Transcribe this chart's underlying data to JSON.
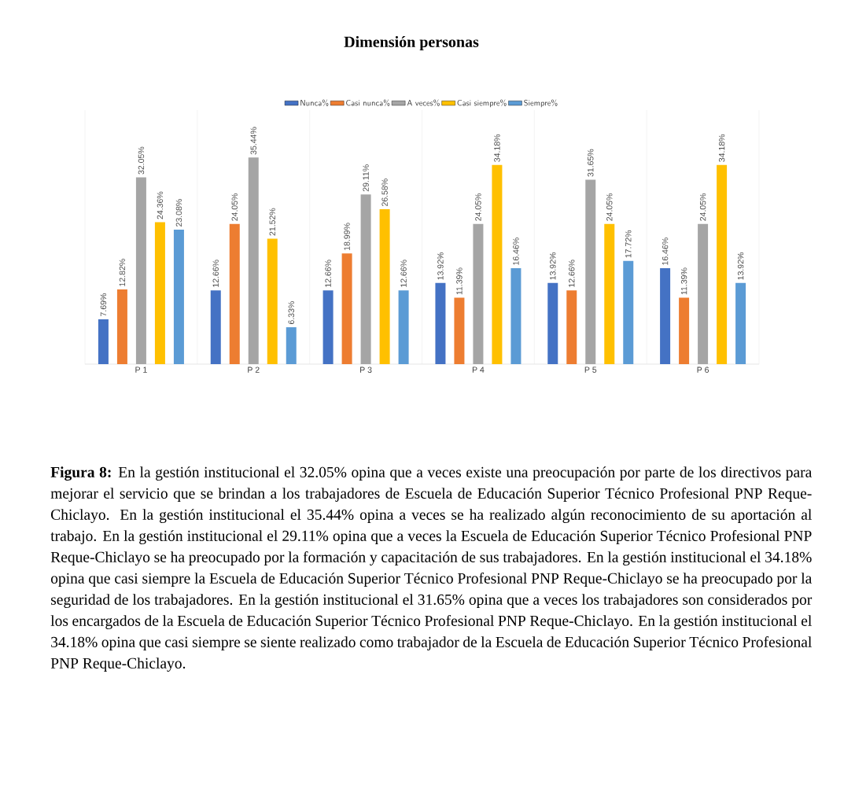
{
  "chart_data": {
    "type": "bar",
    "title": "Dimensión personas",
    "categories": [
      "P 1",
      "P 2",
      "P 3",
      "P 4",
      "P 5",
      "P 6"
    ],
    "series": [
      {
        "name": "Nunca%",
        "color": "#4472c4",
        "values": [
          7.69,
          12.66,
          12.66,
          13.92,
          13.92,
          16.46
        ],
        "value_labels": [
          "7.69%",
          "12.66%",
          "12.66%",
          "13.92%",
          "13.92%",
          "16.46%"
        ]
      },
      {
        "name": "Casi nunca%",
        "color": "#ed7d31",
        "values": [
          12.82,
          24.05,
          18.99,
          11.39,
          12.66,
          11.39
        ],
        "value_labels": [
          "12.82%",
          "24.05%",
          "18.99%",
          "11.39%",
          "12.66%",
          "11.39%"
        ]
      },
      {
        "name": "A veces%",
        "color": "#a5a5a5",
        "values": [
          32.05,
          35.44,
          29.11,
          24.05,
          31.65,
          24.05
        ],
        "value_labels": [
          "32.05%",
          "35.44%",
          "29.11%",
          "24.05%",
          "31.65%",
          "24.05%"
        ]
      },
      {
        "name": "Casi siempre%",
        "color": "#ffc000",
        "values": [
          24.36,
          21.52,
          26.58,
          34.18,
          24.05,
          34.18
        ],
        "value_labels": [
          "24.36%",
          "21.52%",
          "26.58%",
          "34.18%",
          "24.05%",
          "34.18%"
        ]
      },
      {
        "name": "Siempre%",
        "color": "#5b9bd5",
        "values": [
          23.08,
          6.33,
          12.66,
          16.46,
          17.72,
          13.92
        ],
        "value_labels": [
          "23.08%",
          "6.33%",
          "12.66%",
          "16.46%",
          "17.72%",
          "13.92%"
        ]
      }
    ],
    "legend": "top",
    "annotations": [
      "**Figura 8:** En la gestión institucional el 32.05% opina que a veces existe una preocupación por parte de los directivos para mejorar el servicio que se brindan a los trabajadores de Escuela de Educación Superior Técnico Profesional PNP Reque-Chiclayo. En la gestión institucional el 35.44% opina a veces se ha realizado algún reconocimiento de su aportación al trabajo.  En la gestión institucional el 29.11% opina que a veces la Escuela de Educación Superior Técnico Profesional PNP Reque-Chiclayo se ha preocupado por la formación y capacitación de sus trabajadores. En la gestión institucional el 34.18% opina que casi siempre la Escuela de Educación Superior Técnico Profesional PNP Reque-Chiclayo se ha preocupado por la seguridad de los trabajadores. En la gestión institucional el 31.65% opina que a veces los trabajadores son considerados por los encargados de la Escuela de Educación Superior Técnico Profesional PNP Reque-Chiclayo. En la gestión institucional el 34.18% opina que casi siempre se siente realizado como trabajador de la Escuela de Educación Superior Técnico Profesional PNP Reque-Chiclayo."
    ]
  }
}
